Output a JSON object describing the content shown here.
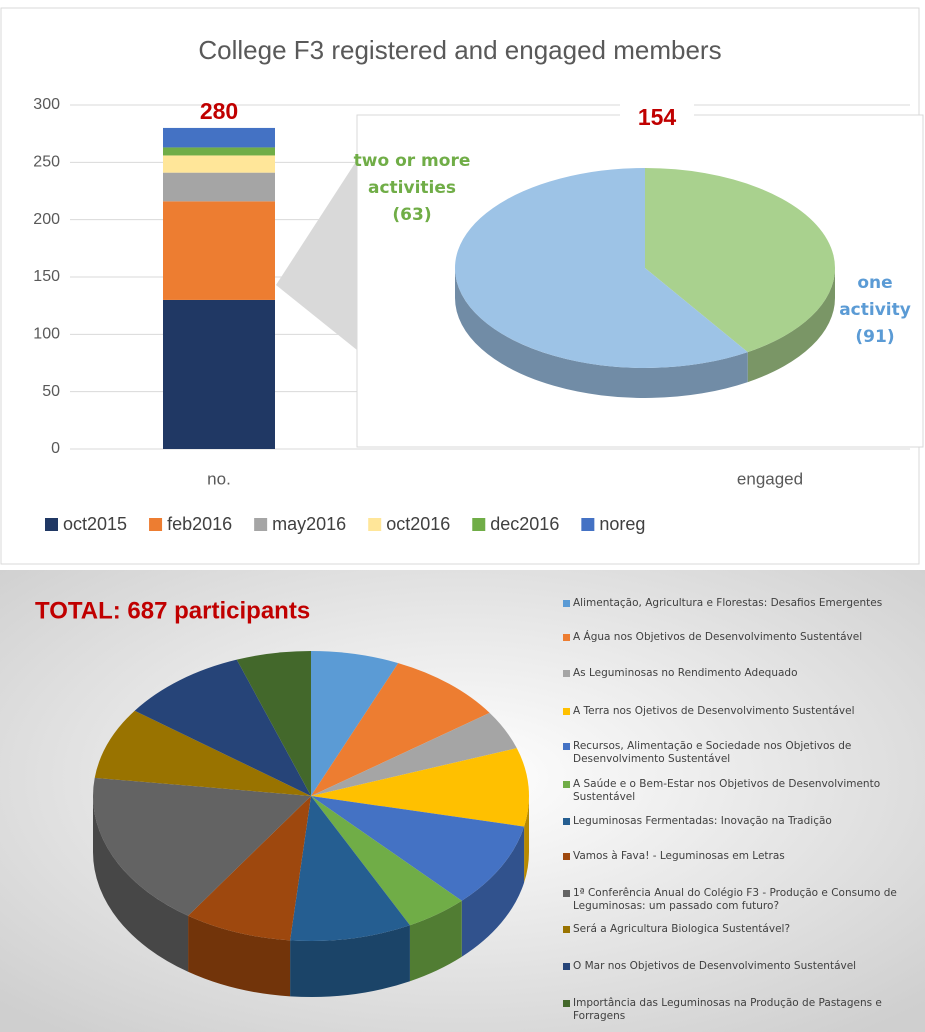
{
  "chart_data": [
    {
      "type": "bar",
      "title": "College F3 registered and engaged members",
      "categories": [
        "no.",
        "engaged"
      ],
      "series": [
        {
          "name": "oct2015",
          "color": "#203864",
          "values": [
            130,
            null
          ]
        },
        {
          "name": "feb2016",
          "color": "#ed7d31",
          "values": [
            86,
            null
          ]
        },
        {
          "name": "may2016",
          "color": "#a5a5a5",
          "values": [
            25,
            null
          ]
        },
        {
          "name": "oct2016",
          "color": "#ffe699",
          "values": [
            15,
            null
          ]
        },
        {
          "name": "dec2016",
          "color": "#70ad47",
          "values": [
            7,
            null
          ]
        },
        {
          "name": "noreg",
          "color": "#4472c4",
          "values": [
            17,
            null
          ]
        }
      ],
      "total": 280,
      "ylim": [
        0,
        300
      ],
      "yticks": [
        0,
        50,
        100,
        150,
        200,
        250,
        300
      ],
      "grid": true,
      "legend": "bottom"
    },
    {
      "type": "pie",
      "total": 154,
      "categories": [
        "two or more activities",
        "one activity"
      ],
      "values": [
        63,
        91
      ],
      "value_labels": [
        "(63)",
        "(91)"
      ],
      "colors": [
        "#a9d18e",
        "#9dc3e6"
      ]
    },
    {
      "type": "pie",
      "title": "TOTAL: 687 participants",
      "categories": [
        "Alimentação, Agricultura e Florestas: Desafios Emergentes",
        "A Água nos Objetivos de Desenvolvimento Sustentável",
        "As Leguminosas no Rendimento Adequado",
        "A Terra nos Ojetivos de Desenvolvimento Sustentável",
        "Recursos, Alimentação e Sociedade nos Objetivos de Desenvolvimento Sustentável",
        "A Saúde e o Bem-Estar nos Objetivos de Desenvolvimento Sustentável",
        "Leguminosas Fermentadas: Inovação na Tradição",
        "Vamos à Fava! - Leguminosas em Letras",
        "1ª Conferência Anual do Colégio F3 - Produção e Consumo de Leguminosas: um passado com futuro?",
        "Será a Agricultura Biologica Sustentável?",
        "O Mar nos Objetivos de Desenvolvimento Sustentável",
        "Importância das Leguminosas na Produção de Pastagens e Forragens"
      ],
      "values": [
        45,
        60,
        30,
        60,
        65,
        32,
        62,
        55,
        120,
        55,
        65,
        38
      ],
      "colors": [
        "#5b9bd5",
        "#ed7d31",
        "#a5a5a5",
        "#ffc000",
        "#4472c4",
        "#70ad47",
        "#255e91",
        "#9e480e",
        "#636363",
        "#997300",
        "#264478",
        "#43682b"
      ],
      "legend": "right"
    }
  ]
}
